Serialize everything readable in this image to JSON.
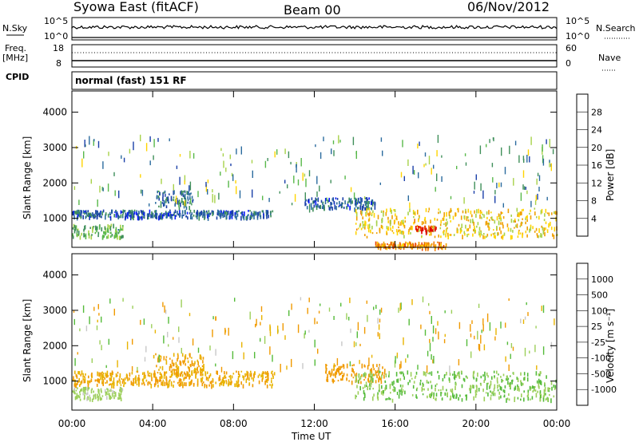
{
  "header": {
    "title_left": "Syowa East (fitACF)",
    "title_center": "Beam 00",
    "title_right": "06/Nov/2012"
  },
  "status_panel": {
    "left_label_top": "N.Sky",
    "left_label_bottom": "Freq.",
    "left_label_unit": "[MHz]",
    "cpid_label": "CPID",
    "cpid_value": "normal (fast) 151 RF",
    "right_label_top": "N.Search",
    "right_label_bottom": "Nave",
    "nsky_ticks": [
      "10^5",
      "10^0"
    ],
    "nsearch_ticks": [
      "10^5",
      "10^0"
    ],
    "freq_ticks": [
      "18",
      "8"
    ],
    "nave_ticks": [
      "60",
      "0"
    ]
  },
  "colors": {
    "power_scale": [
      "#0a1aff",
      "#1a3fa8",
      "#2b6b9e",
      "#3f8f5a",
      "#58b84a",
      "#a7d24a",
      "#ffd400",
      "#f0a000",
      "#f07800",
      "#e84000",
      "#e00000"
    ],
    "velocity_scale": [
      "#1a2ca0",
      "#1f5fa8",
      "#2f8a5f",
      "#55bb3a",
      "#9ccf5a",
      "#c8c8c8",
      "#e8b400",
      "#f09a00",
      "#f07000",
      "#e83000",
      "#ee0000"
    ]
  },
  "chart_data": [
    {
      "type": "heatmap",
      "name": "power",
      "ylabel": "Slant Range [km]",
      "yticks": [
        "1000",
        "2000",
        "3000",
        "4000"
      ],
      "ylim": [
        180,
        4600
      ],
      "xlim": [
        "00:00",
        "24:00"
      ],
      "colorbar": {
        "label": "Power [dB]",
        "ticks": [
          "4",
          "8",
          "12",
          "16",
          "20",
          "24",
          "28"
        ],
        "range": [
          0,
          30
        ]
      },
      "regions": [
        {
          "start": "00:00",
          "end": "10:00",
          "range_low": 1050,
          "range_high": 1250,
          "value_db": 6
        },
        {
          "start": "00:00",
          "end": "02:30",
          "range_low": 500,
          "range_high": 850,
          "value_db": 12
        },
        {
          "start": "04:00",
          "end": "06:00",
          "range_low": 1300,
          "range_high": 1800,
          "value_db": 7
        },
        {
          "start": "11:30",
          "end": "15:00",
          "range_low": 1300,
          "range_high": 1600,
          "value_db": 6
        },
        {
          "start": "14:00",
          "end": "24:00",
          "range_low": 500,
          "range_high": 1300,
          "value_db": 18
        },
        {
          "start": "15:00",
          "end": "18:30",
          "range_low": 200,
          "range_high": 350,
          "value_db": 22
        },
        {
          "start": "17:00",
          "end": "18:00",
          "range_low": 650,
          "range_high": 800,
          "value_db": 28
        }
      ]
    },
    {
      "type": "heatmap",
      "name": "velocity",
      "ylabel": "Slant Range [km]",
      "yticks": [
        "1000",
        "2000",
        "3000",
        "4000"
      ],
      "ylim": [
        180,
        4600
      ],
      "xlim": [
        "00:00",
        "24:00"
      ],
      "xticks": [
        "00:00",
        "04:00",
        "08:00",
        "12:00",
        "16:00",
        "20:00",
        "00:00"
      ],
      "xlabel": "Time UT",
      "colorbar": {
        "label": "Velocity [m s⁻¹]",
        "ticks": [
          "1000",
          "500",
          "100",
          "25",
          "-25",
          "-100",
          "-500",
          "-1000"
        ],
        "range": [
          -1000,
          1000
        ]
      },
      "regions": [
        {
          "start": "00:00",
          "end": "10:00",
          "range_low": 900,
          "range_high": 1300,
          "value_ms": -100
        },
        {
          "start": "04:00",
          "end": "06:30",
          "range_low": 1200,
          "range_high": 1800,
          "value_ms": -100
        },
        {
          "start": "12:30",
          "end": "15:30",
          "range_low": 1000,
          "range_high": 1500,
          "value_ms": -150
        },
        {
          "start": "14:00",
          "end": "24:00",
          "range_low": 500,
          "range_high": 1300,
          "value_ms": 100
        },
        {
          "start": "00:00",
          "end": "02:30",
          "range_low": 500,
          "range_high": 850,
          "value_ms": 50
        }
      ]
    }
  ]
}
